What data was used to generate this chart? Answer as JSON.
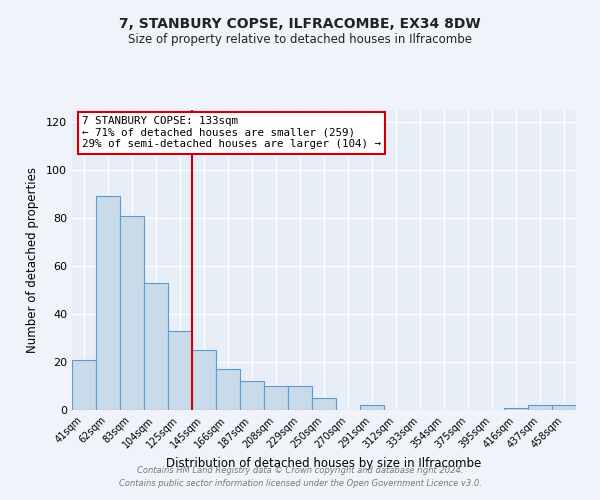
{
  "title": "7, STANBURY COPSE, ILFRACOMBE, EX34 8DW",
  "subtitle": "Size of property relative to detached houses in Ilfracombe",
  "xlabel": "Distribution of detached houses by size in Ilfracombe",
  "ylabel": "Number of detached properties",
  "bar_labels": [
    "41sqm",
    "62sqm",
    "83sqm",
    "104sqm",
    "125sqm",
    "145sqm",
    "166sqm",
    "187sqm",
    "208sqm",
    "229sqm",
    "250sqm",
    "270sqm",
    "291sqm",
    "312sqm",
    "333sqm",
    "354sqm",
    "375sqm",
    "395sqm",
    "416sqm",
    "437sqm",
    "458sqm"
  ],
  "bar_values": [
    21,
    89,
    81,
    53,
    33,
    25,
    17,
    12,
    10,
    10,
    5,
    0,
    2,
    0,
    0,
    0,
    0,
    0,
    1,
    2,
    2
  ],
  "bar_color": "#c9daea",
  "bar_edge_color": "#5b9bd5",
  "vline_color": "#cc0000",
  "annotation_title": "7 STANBURY COPSE: 133sqm",
  "annotation_line1": "← 71% of detached houses are smaller (259)",
  "annotation_line2": "29% of semi-detached houses are larger (104) →",
  "annotation_box_edge_color": "#cc0000",
  "annotation_box_bg": "#ffffff",
  "ylim": [
    0,
    125
  ],
  "yticks": [
    0,
    20,
    40,
    60,
    80,
    100,
    120
  ],
  "footer1": "Contains HM Land Registry data © Crown copyright and database right 2024.",
  "footer2": "Contains public sector information licensed under the Open Government Licence v3.0.",
  "bg_color": "#f0f4fa",
  "plot_bg_color": "#e8eef7"
}
